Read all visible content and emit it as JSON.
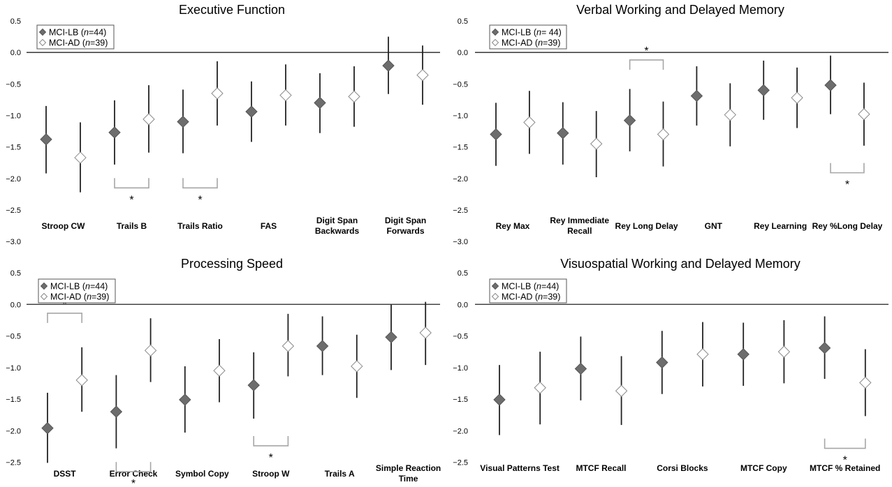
{
  "figure": {
    "panels": [
      {
        "title": "Executive Function",
        "legend": [
          {
            "group": "MCI-LB",
            "n_label": "n",
            "n_value": "=44"
          },
          {
            "group": "MCI-AD",
            "n_label": "n",
            "n_value": "=39"
          }
        ]
      },
      {
        "title": "Verbal Working and Delayed Memory",
        "legend": [
          {
            "group": "MCI-LB",
            "n_label": "n",
            "n_value": "= 44"
          },
          {
            "group": "MCI-AD",
            "n_label": "n",
            "n_value": "=39"
          }
        ]
      },
      {
        "title": "Processing Speed",
        "legend": [
          {
            "group": "MCI-LB",
            "n_label": "n",
            "n_value": "=44"
          },
          {
            "group": "MCI-AD",
            "n_label": "n",
            "n_value": "=39"
          }
        ]
      },
      {
        "title": "Visuospatial Working and Delayed Memory",
        "legend": [
          {
            "group": "MCI-LB",
            "n_label": "n",
            "n_value": "=44"
          },
          {
            "group": "MCI-AD",
            "n_label": "n",
            "n_value": "=39"
          }
        ]
      }
    ]
  },
  "colors": {
    "lb_marker": "#6d6d6d",
    "ad_marker": "#ffffff",
    "errorbar": "#222222",
    "bracket": "#a6a6a6",
    "zero_line": "#444444"
  },
  "chart_data": [
    {
      "type": "scatter",
      "title": "Executive Function",
      "ylim": [
        -3.0,
        0.5
      ],
      "yticks": [
        "0.5",
        "0.0",
        "-0.5",
        "-1.0",
        "-1.5",
        "-2.0",
        "-2.5",
        "-3.0"
      ],
      "categories": [
        [
          "Stroop CW"
        ],
        [
          "Trails B"
        ],
        [
          "Trails Ratio"
        ],
        [
          "FAS"
        ],
        [
          "Digit Span",
          "Backwards"
        ],
        [
          "Digit Span",
          "Forwards"
        ]
      ],
      "series": [
        {
          "name": "MCI-LB",
          "x": [
            1,
            3,
            5,
            7,
            9,
            11
          ],
          "y": [
            -1.38,
            -1.27,
            -1.1,
            -0.94,
            -0.8,
            -0.21
          ],
          "err_low": [
            -1.92,
            -1.78,
            -1.6,
            -1.42,
            -1.28,
            -0.66
          ],
          "err_high": [
            -0.85,
            -0.76,
            -0.59,
            -0.46,
            -0.33,
            0.25
          ]
        },
        {
          "name": "MCI-AD",
          "x": [
            2,
            4,
            6,
            8,
            10,
            12
          ],
          "y": [
            -1.67,
            -1.06,
            -0.65,
            -0.68,
            -0.7,
            -0.36
          ],
          "err_low": [
            -2.22,
            -1.59,
            -1.16,
            -1.16,
            -1.18,
            -0.83
          ],
          "err_high": [
            -1.11,
            -0.52,
            -0.14,
            -0.19,
            -0.22,
            0.11
          ]
        }
      ],
      "brackets": [
        {
          "x1": 3,
          "x2": 4,
          "y": -2.15,
          "dir": "down",
          "label": "*"
        },
        {
          "x1": 5,
          "x2": 6,
          "y": -2.15,
          "dir": "down",
          "label": "*"
        }
      ]
    },
    {
      "type": "scatter",
      "title": "Verbal Working and Delayed Memory",
      "ylim": [
        -3.0,
        0.5
      ],
      "yticks": [
        "0.5",
        "0.0",
        "-0.5",
        "-1.0",
        "-1.5",
        "-2.0",
        "-2.5",
        "-3.0"
      ],
      "categories": [
        [
          "Rey Max"
        ],
        [
          "Rey Immediate",
          "Recall"
        ],
        [
          "Rey Long Delay"
        ],
        [
          "GNT"
        ],
        [
          "Rey Learning"
        ],
        [
          "Rey %Long  Delay"
        ]
      ],
      "series": [
        {
          "name": "MCI-LB",
          "x": [
            1,
            3,
            5,
            7,
            9,
            11
          ],
          "y": [
            -1.3,
            -1.28,
            -1.08,
            -0.69,
            -0.6,
            -0.52
          ],
          "err_low": [
            -1.8,
            -1.78,
            -1.57,
            -1.16,
            -1.07,
            -0.98
          ],
          "err_high": [
            -0.8,
            -0.79,
            -0.58,
            -0.22,
            -0.13,
            -0.05
          ]
        },
        {
          "name": "MCI-AD",
          "x": [
            2,
            4,
            6,
            8,
            10,
            12
          ],
          "y": [
            -1.11,
            -1.45,
            -1.3,
            -0.99,
            -0.72,
            -0.98
          ],
          "err_low": [
            -1.61,
            -1.98,
            -1.81,
            -1.49,
            -1.2,
            -1.48
          ],
          "err_high": [
            -0.61,
            -0.93,
            -0.78,
            -0.49,
            -0.24,
            -0.48
          ]
        }
      ],
      "brackets": [
        {
          "x1": 5,
          "x2": 6,
          "y": -0.12,
          "dir": "up",
          "label": "*"
        },
        {
          "x1": 11,
          "x2": 12,
          "y": -1.91,
          "dir": "down",
          "label": "*"
        }
      ]
    },
    {
      "type": "scatter",
      "title": "Processing Speed",
      "ylim": [
        -3.0,
        0.5
      ],
      "yticks": [
        "0.5",
        "0.0",
        "-0.5",
        "-1.0",
        "-1.5",
        "-2.0",
        "-2.5",
        "-3.0"
      ],
      "categories": [
        [
          "DSST"
        ],
        [
          "Error Check"
        ],
        [
          "Symbol Copy"
        ],
        [
          "Stroop W"
        ],
        [
          "Trails A"
        ],
        [
          "Simple Reaction",
          "Time"
        ]
      ],
      "series": [
        {
          "name": "MCI-LB",
          "x": [
            1,
            3,
            5,
            7,
            9,
            11
          ],
          "y": [
            -1.96,
            -1.7,
            -1.51,
            -1.28,
            -0.66,
            -0.52
          ],
          "err_low": [
            -2.51,
            -2.28,
            -2.03,
            -1.81,
            -1.12,
            -1.04
          ],
          "err_high": [
            -1.4,
            -1.12,
            -0.98,
            -0.76,
            -0.19,
            0.0
          ]
        },
        {
          "name": "MCI-AD",
          "x": [
            2,
            4,
            6,
            8,
            10,
            12
          ],
          "y": [
            -1.2,
            -0.73,
            -1.05,
            -0.66,
            -0.98,
            -0.45
          ],
          "err_low": [
            -1.7,
            -1.23,
            -1.55,
            -1.14,
            -1.48,
            -0.96
          ],
          "err_high": [
            -0.68,
            -0.22,
            -0.55,
            -0.15,
            -0.48,
            0.04
          ]
        }
      ],
      "brackets": [
        {
          "x1": 1,
          "x2": 2,
          "y": -0.14,
          "dir": "up",
          "label": "*"
        },
        {
          "x1": 3,
          "x2": 4,
          "y": -2.65,
          "dir": "down",
          "label": "*"
        },
        {
          "x1": 7,
          "x2": 8,
          "y": -2.24,
          "dir": "down",
          "label": "*"
        }
      ]
    },
    {
      "type": "scatter",
      "title": "Visuospatial Working and Delayed Memory",
      "ylim": [
        -3.0,
        0.5
      ],
      "yticks": [
        "0.5",
        "0.0",
        "-0.5",
        "-1.0",
        "-1.5",
        "-2.0",
        "-2.5",
        "-3.0"
      ],
      "categories": [
        [
          "Visual Patterns Test"
        ],
        [
          "MTCF Recall"
        ],
        [
          "Corsi Blocks"
        ],
        [
          "MTCF Copy"
        ],
        [
          "MTCF % Retained"
        ]
      ],
      "series": [
        {
          "name": "MCI-LB",
          "x": [
            1,
            3,
            5,
            7,
            9
          ],
          "y": [
            -1.51,
            -1.02,
            -0.92,
            -0.79,
            -0.69
          ],
          "err_low": [
            -2.07,
            -1.52,
            -1.42,
            -1.29,
            -1.18
          ],
          "err_high": [
            -0.96,
            -0.51,
            -0.42,
            -0.29,
            -0.19
          ]
        },
        {
          "name": "MCI-AD",
          "x": [
            2,
            4,
            6,
            8,
            10
          ],
          "y": [
            -1.32,
            -1.37,
            -0.79,
            -0.75,
            -1.24
          ],
          "err_low": [
            -1.9,
            -1.91,
            -1.3,
            -1.25,
            -1.77
          ],
          "err_high": [
            -0.75,
            -0.82,
            -0.28,
            -0.25,
            -0.71
          ]
        }
      ],
      "brackets": [
        {
          "x1": 9,
          "x2": 10,
          "y": -2.28,
          "dir": "down",
          "label": "*"
        }
      ]
    }
  ]
}
